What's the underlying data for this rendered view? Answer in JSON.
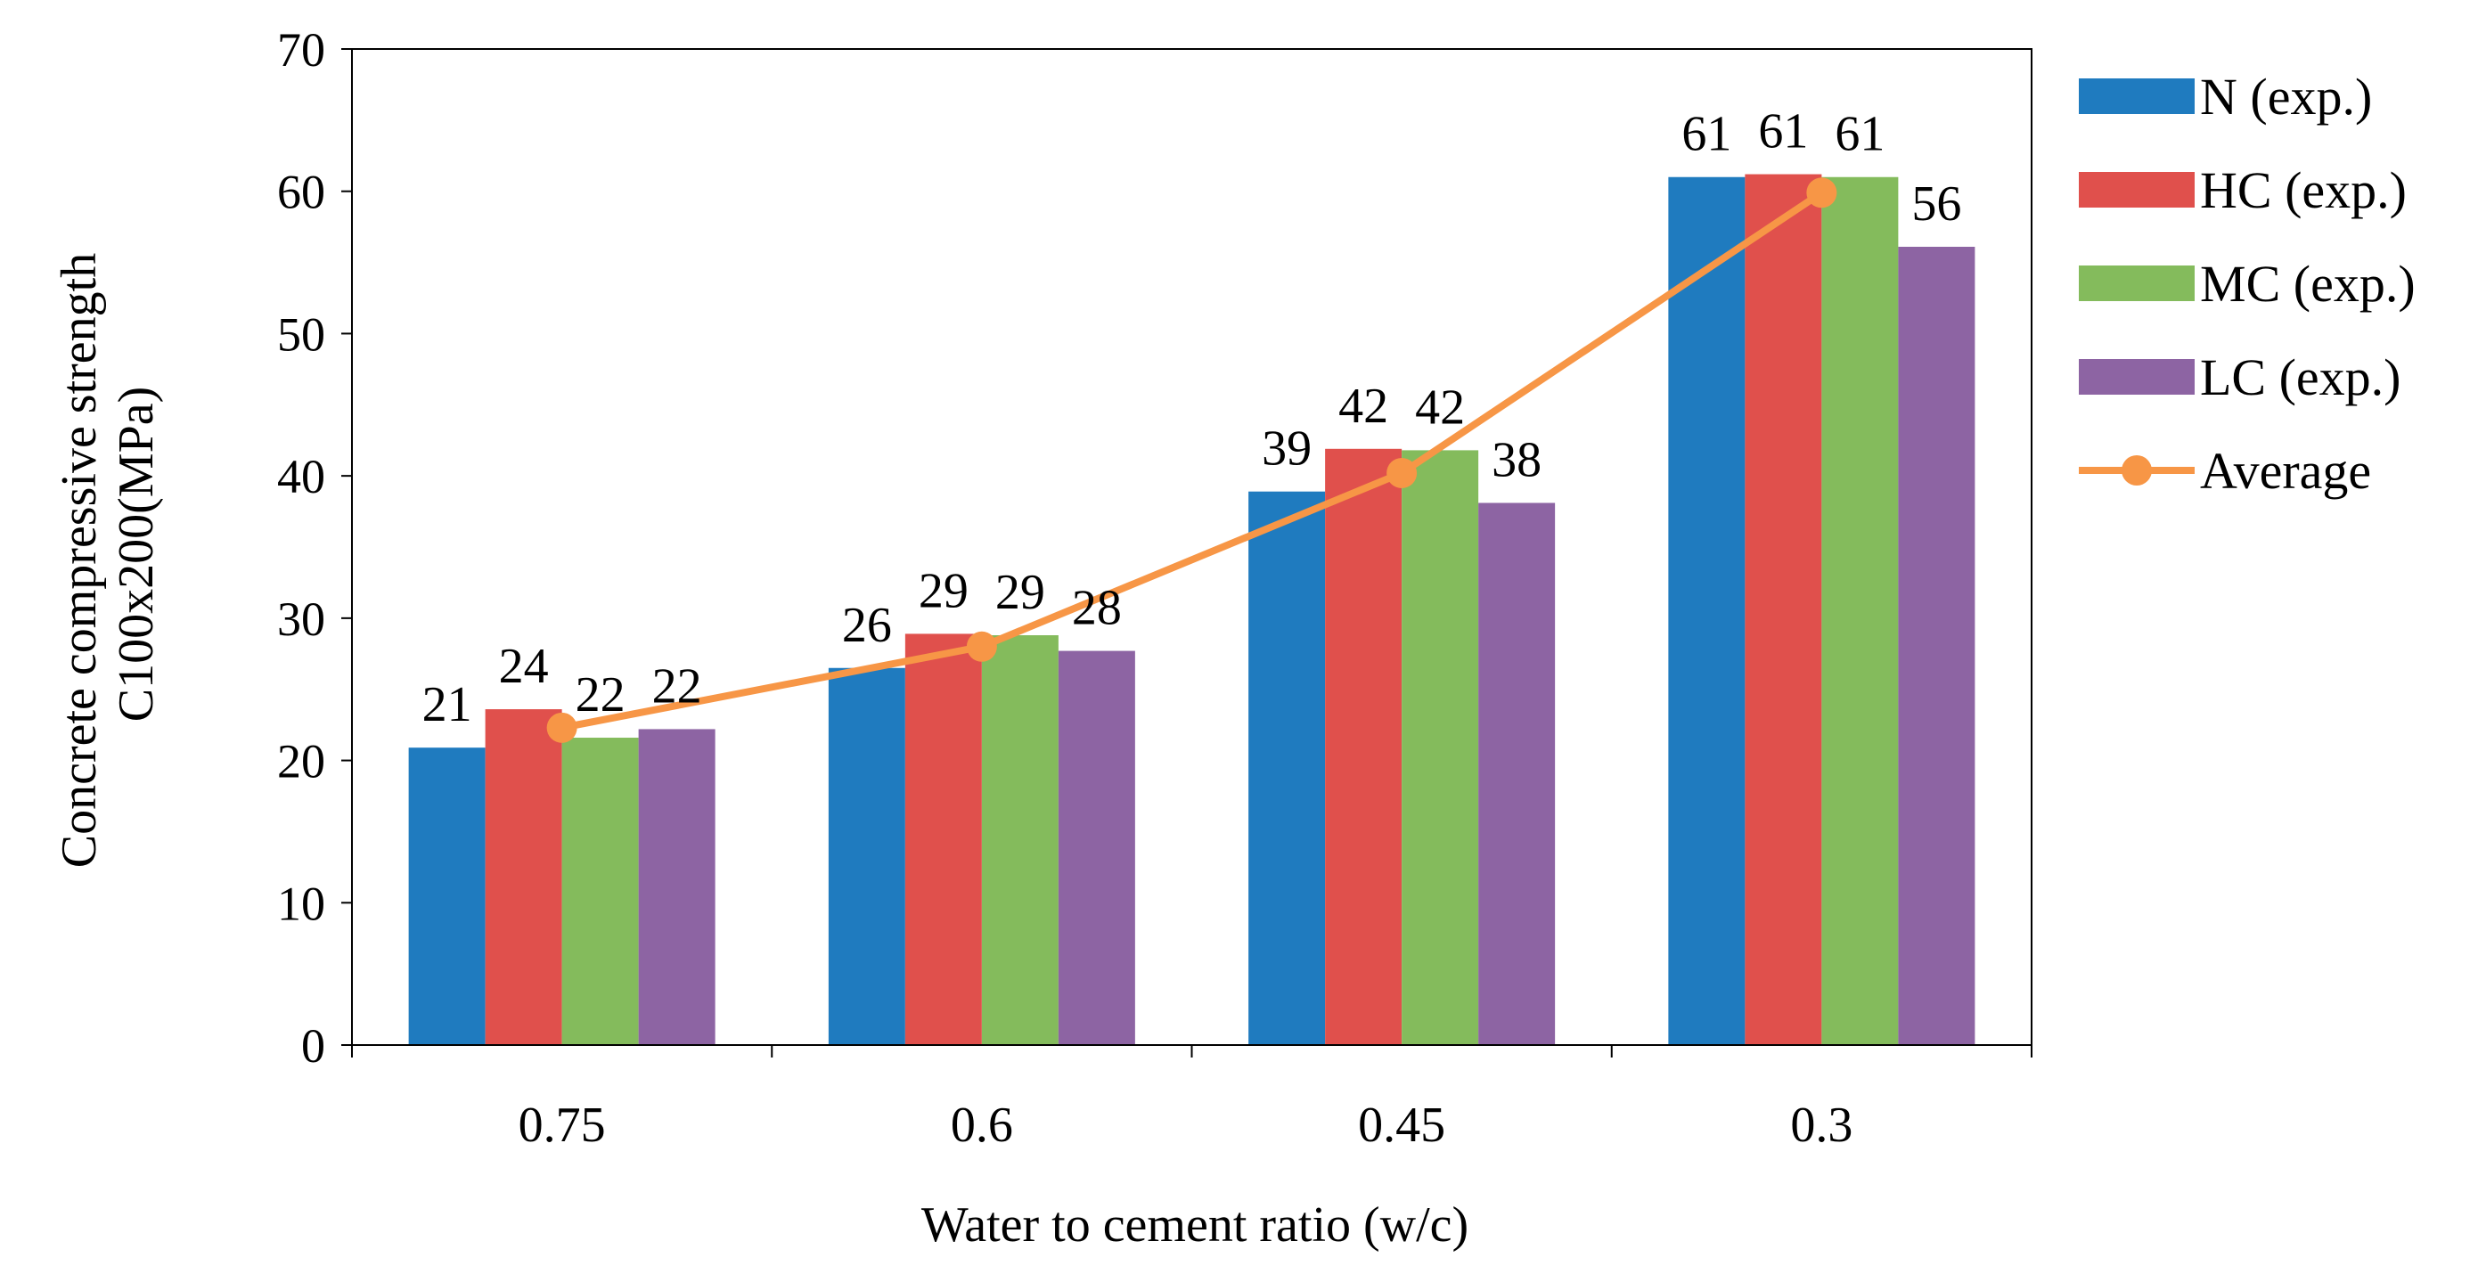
{
  "chart_data": {
    "type": "bar",
    "title": "",
    "xlabel": "Water to cement ratio (w/c)",
    "ylabel": [
      "Concrete compressive strength",
      "C100x200(MPa)"
    ],
    "ylim": [
      0,
      70
    ],
    "yticks": [
      0,
      10,
      20,
      30,
      40,
      50,
      60,
      70
    ],
    "grid": false,
    "legend_position": "right",
    "categories": [
      "0.75",
      "0.6",
      "0.45",
      "0.3"
    ],
    "series": [
      {
        "name": "N (exp.)",
        "color": "#1f7bbf",
        "values": [
          20.9,
          26.5,
          38.9,
          61.0
        ],
        "labels": [
          "21",
          "26",
          "39",
          "61"
        ]
      },
      {
        "name": "HC (exp.)",
        "color": "#e0504c",
        "values": [
          23.6,
          28.9,
          41.9,
          61.2
        ],
        "labels": [
          "24",
          "29",
          "42",
          "61"
        ]
      },
      {
        "name": "MC (exp.)",
        "color": "#84bb5c",
        "values": [
          21.6,
          28.8,
          41.8,
          61.0
        ],
        "labels": [
          "22",
          "29",
          "42",
          "61"
        ]
      },
      {
        "name": "LC (exp.)",
        "color": "#8d64a3",
        "values": [
          22.2,
          27.7,
          38.1,
          56.1
        ],
        "labels": [
          "22",
          "28",
          "38",
          "56"
        ]
      }
    ],
    "line_series": {
      "name": "Average",
      "color": "#f79646",
      "values": [
        22.3,
        28.0,
        40.2,
        59.9
      ]
    }
  }
}
